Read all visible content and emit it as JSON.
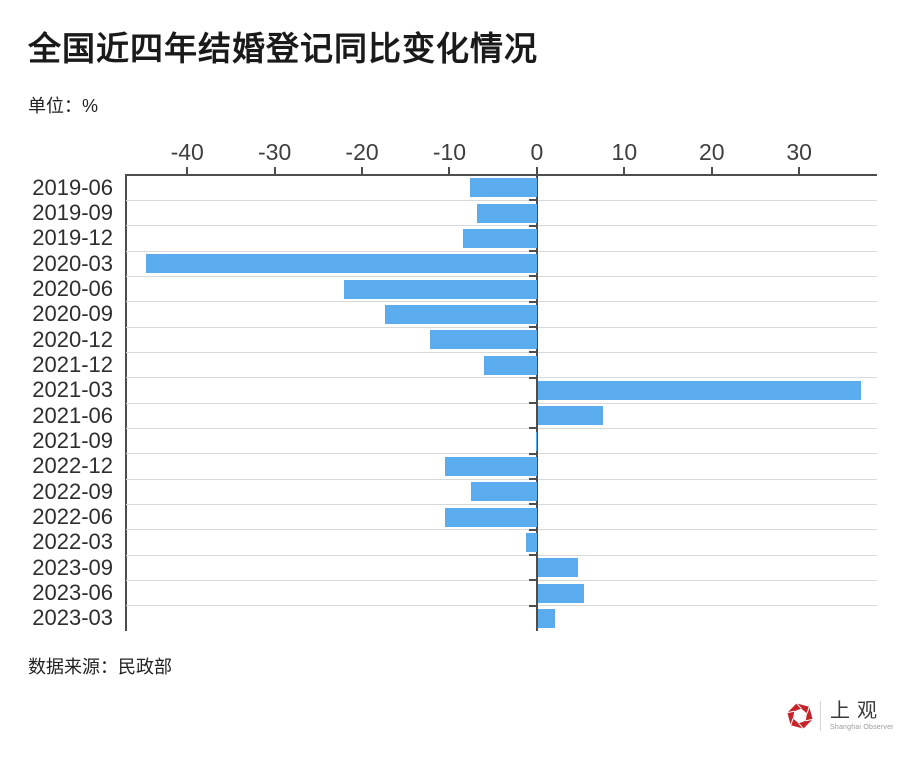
{
  "header": {
    "title": "全国近四年结婚登记同比变化情况",
    "unit": "单位：%"
  },
  "footer": {
    "source": "数据来源：民政部",
    "logo_cn": "上观",
    "logo_en": "Shanghai Observer"
  },
  "chart_data": {
    "type": "bar",
    "orientation": "horizontal",
    "title": "全国近四年结婚登记同比变化情况",
    "xlabel": "单位：%",
    "ylabel": "",
    "categories": [
      "2019-06",
      "2019-09",
      "2019-12",
      "2020-03",
      "2020-06",
      "2020-09",
      "2020-12",
      "2021-12",
      "2021-03",
      "2021-06",
      "2021-09",
      "2022-12",
      "2022-09",
      "2022-06",
      "2022-03",
      "2023-09",
      "2023-06",
      "2023-03"
    ],
    "values": [
      -7.7,
      -6.8,
      -8.4,
      -44.7,
      -22.1,
      -17.4,
      -12.2,
      -6.1,
      37.0,
      7.4,
      -0.1,
      -10.5,
      -7.5,
      -10.5,
      -1.2,
      4.6,
      5.3,
      1.9
    ],
    "x_ticks": [
      -40,
      -30,
      -20,
      -10,
      0,
      10,
      20,
      30
    ],
    "xlim": [
      -47,
      38.9
    ],
    "grid": true,
    "legend": false,
    "bar_color": "#5AACEE",
    "axis_color": "#4D4D4D",
    "grid_color": "#D9D9D9",
    "label_color": "#2E2E2E",
    "logo_red": "#C5242B"
  }
}
